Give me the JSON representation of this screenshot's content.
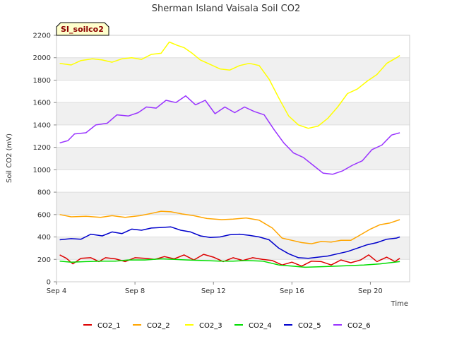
{
  "chart_data": {
    "type": "line",
    "title": "Sherman Island Vaisala Soil CO2",
    "badge": "SI_soilco2",
    "xlabel": "Time",
    "ylabel": "Soil CO2 (mV)",
    "xlim": [
      "2023-09-04",
      "2023-09-22"
    ],
    "ylim": [
      0,
      2200
    ],
    "yticks": [
      0,
      200,
      400,
      600,
      800,
      1000,
      1200,
      1400,
      1600,
      1800,
      2000,
      2200
    ],
    "xticks": [
      {
        "date": "2023-09-04",
        "label": "Sep 4"
      },
      {
        "date": "2023-09-08",
        "label": "Sep 8"
      },
      {
        "date": "2023-09-12",
        "label": "Sep 12"
      },
      {
        "date": "2023-09-16",
        "label": "Sep 16"
      },
      {
        "date": "2023-09-20",
        "label": "Sep 20"
      }
    ],
    "grid": true,
    "legend_position": "bottom",
    "series": [
      {
        "name": "CO2_1",
        "color": "#dd0000",
        "points": [
          [
            "2023-09-04 04:00",
            240
          ],
          [
            "2023-09-04 12:00",
            210
          ],
          [
            "2023-09-04 20:00",
            160
          ],
          [
            "2023-09-05 06:00",
            210
          ],
          [
            "2023-09-05 18:00",
            215
          ],
          [
            "2023-09-06 04:00",
            180
          ],
          [
            "2023-09-06 12:00",
            215
          ],
          [
            "2023-09-07 00:00",
            205
          ],
          [
            "2023-09-07 12:00",
            180
          ],
          [
            "2023-09-08 00:00",
            215
          ],
          [
            "2023-09-08 12:00",
            210
          ],
          [
            "2023-09-09 00:00",
            200
          ],
          [
            "2023-09-09 12:00",
            225
          ],
          [
            "2023-09-10 00:00",
            205
          ],
          [
            "2023-09-10 12:00",
            240
          ],
          [
            "2023-09-11 00:00",
            195
          ],
          [
            "2023-09-11 12:00",
            245
          ],
          [
            "2023-09-12 00:00",
            220
          ],
          [
            "2023-09-12 12:00",
            180
          ],
          [
            "2023-09-13 00:00",
            215
          ],
          [
            "2023-09-13 12:00",
            190
          ],
          [
            "2023-09-14 00:00",
            215
          ],
          [
            "2023-09-14 12:00",
            200
          ],
          [
            "2023-09-15 00:00",
            190
          ],
          [
            "2023-09-15 12:00",
            150
          ],
          [
            "2023-09-16 00:00",
            175
          ],
          [
            "2023-09-16 12:00",
            140
          ],
          [
            "2023-09-17 00:00",
            185
          ],
          [
            "2023-09-17 12:00",
            180
          ],
          [
            "2023-09-18 00:00",
            150
          ],
          [
            "2023-09-18 12:00",
            195
          ],
          [
            "2023-09-19 00:00",
            170
          ],
          [
            "2023-09-19 12:00",
            195
          ],
          [
            "2023-09-19 22:00",
            240
          ],
          [
            "2023-09-20 08:00",
            180
          ],
          [
            "2023-09-20 20:00",
            220
          ],
          [
            "2023-09-21 06:00",
            180
          ],
          [
            "2023-09-21 12:00",
            210
          ]
        ]
      },
      {
        "name": "CO2_2",
        "color": "#ffa500",
        "points": [
          [
            "2023-09-04 04:00",
            600
          ],
          [
            "2023-09-04 18:00",
            580
          ],
          [
            "2023-09-05 12:00",
            585
          ],
          [
            "2023-09-06 06:00",
            575
          ],
          [
            "2023-09-06 20:00",
            590
          ],
          [
            "2023-09-07 12:00",
            575
          ],
          [
            "2023-09-08 06:00",
            590
          ],
          [
            "2023-09-08 20:00",
            610
          ],
          [
            "2023-09-09 08:00",
            630
          ],
          [
            "2023-09-09 20:00",
            625
          ],
          [
            "2023-09-10 10:00",
            605
          ],
          [
            "2023-09-11 00:00",
            590
          ],
          [
            "2023-09-11 16:00",
            565
          ],
          [
            "2023-09-12 10:00",
            555
          ],
          [
            "2023-09-13 00:00",
            560
          ],
          [
            "2023-09-13 16:00",
            570
          ],
          [
            "2023-09-14 08:00",
            550
          ],
          [
            "2023-09-15 00:00",
            480
          ],
          [
            "2023-09-15 12:00",
            390
          ],
          [
            "2023-09-16 00:00",
            370
          ],
          [
            "2023-09-16 12:00",
            350
          ],
          [
            "2023-09-17 00:00",
            340
          ],
          [
            "2023-09-17 12:00",
            360
          ],
          [
            "2023-09-18 00:00",
            355
          ],
          [
            "2023-09-18 12:00",
            370
          ],
          [
            "2023-09-19 00:00",
            370
          ],
          [
            "2023-09-19 12:00",
            420
          ],
          [
            "2023-09-20 00:00",
            470
          ],
          [
            "2023-09-20 12:00",
            510
          ],
          [
            "2023-09-21 00:00",
            525
          ],
          [
            "2023-09-21 12:00",
            555
          ]
        ]
      },
      {
        "name": "CO2_3",
        "color": "#ffff00",
        "points": [
          [
            "2023-09-04 04:00",
            1950
          ],
          [
            "2023-09-04 18:00",
            1935
          ],
          [
            "2023-09-05 06:00",
            1975
          ],
          [
            "2023-09-05 20:00",
            1990
          ],
          [
            "2023-09-06 08:00",
            1980
          ],
          [
            "2023-09-06 20:00",
            1960
          ],
          [
            "2023-09-07 08:00",
            1990
          ],
          [
            "2023-09-07 20:00",
            2000
          ],
          [
            "2023-09-08 08:00",
            1985
          ],
          [
            "2023-09-08 20:00",
            2030
          ],
          [
            "2023-09-09 08:00",
            2040
          ],
          [
            "2023-09-09 18:00",
            2140
          ],
          [
            "2023-09-10 04:00",
            2110
          ],
          [
            "2023-09-10 12:00",
            2090
          ],
          [
            "2023-09-10 22:00",
            2040
          ],
          [
            "2023-09-11 08:00",
            1980
          ],
          [
            "2023-09-11 20:00",
            1940
          ],
          [
            "2023-09-12 08:00",
            1900
          ],
          [
            "2023-09-12 20:00",
            1890
          ],
          [
            "2023-09-13 08:00",
            1930
          ],
          [
            "2023-09-13 20:00",
            1950
          ],
          [
            "2023-09-14 08:00",
            1930
          ],
          [
            "2023-09-14 20:00",
            1810
          ],
          [
            "2023-09-15 08:00",
            1640
          ],
          [
            "2023-09-15 20:00",
            1480
          ],
          [
            "2023-09-16 08:00",
            1400
          ],
          [
            "2023-09-16 20:00",
            1370
          ],
          [
            "2023-09-17 08:00",
            1390
          ],
          [
            "2023-09-17 20:00",
            1460
          ],
          [
            "2023-09-18 08:00",
            1560
          ],
          [
            "2023-09-18 20:00",
            1680
          ],
          [
            "2023-09-19 08:00",
            1720
          ],
          [
            "2023-09-19 20:00",
            1790
          ],
          [
            "2023-09-20 08:00",
            1850
          ],
          [
            "2023-09-20 20:00",
            1950
          ],
          [
            "2023-09-21 08:00",
            2000
          ],
          [
            "2023-09-21 12:00",
            2020
          ]
        ]
      },
      {
        "name": "CO2_4",
        "color": "#00dd00",
        "points": [
          [
            "2023-09-04 04:00",
            185
          ],
          [
            "2023-09-04 18:00",
            175
          ],
          [
            "2023-09-05 12:00",
            180
          ],
          [
            "2023-09-06 08:00",
            185
          ],
          [
            "2023-09-07 00:00",
            185
          ],
          [
            "2023-09-07 16:00",
            195
          ],
          [
            "2023-09-08 12:00",
            195
          ],
          [
            "2023-09-09 08:00",
            205
          ],
          [
            "2023-09-10 00:00",
            200
          ],
          [
            "2023-09-10 16:00",
            195
          ],
          [
            "2023-09-11 12:00",
            190
          ],
          [
            "2023-09-12 08:00",
            185
          ],
          [
            "2023-09-13 00:00",
            185
          ],
          [
            "2023-09-13 16:00",
            190
          ],
          [
            "2023-09-14 12:00",
            185
          ],
          [
            "2023-09-15 08:00",
            150
          ],
          [
            "2023-09-16 00:00",
            140
          ],
          [
            "2023-09-16 16:00",
            130
          ],
          [
            "2023-09-17 12:00",
            135
          ],
          [
            "2023-09-18 08:00",
            140
          ],
          [
            "2023-09-19 00:00",
            145
          ],
          [
            "2023-09-19 16:00",
            150
          ],
          [
            "2023-09-20 12:00",
            160
          ],
          [
            "2023-09-21 12:00",
            180
          ]
        ]
      },
      {
        "name": "CO2_5",
        "color": "#0000cc",
        "points": [
          [
            "2023-09-04 04:00",
            375
          ],
          [
            "2023-09-04 18:00",
            385
          ],
          [
            "2023-09-05 06:00",
            380
          ],
          [
            "2023-09-05 18:00",
            425
          ],
          [
            "2023-09-06 08:00",
            410
          ],
          [
            "2023-09-06 20:00",
            445
          ],
          [
            "2023-09-07 08:00",
            430
          ],
          [
            "2023-09-07 20:00",
            470
          ],
          [
            "2023-09-08 08:00",
            460
          ],
          [
            "2023-09-08 20:00",
            480
          ],
          [
            "2023-09-09 08:00",
            485
          ],
          [
            "2023-09-09 20:00",
            490
          ],
          [
            "2023-09-10 08:00",
            460
          ],
          [
            "2023-09-10 20:00",
            445
          ],
          [
            "2023-09-11 08:00",
            410
          ],
          [
            "2023-09-11 20:00",
            395
          ],
          [
            "2023-09-12 08:00",
            400
          ],
          [
            "2023-09-12 20:00",
            420
          ],
          [
            "2023-09-13 08:00",
            425
          ],
          [
            "2023-09-13 20:00",
            415
          ],
          [
            "2023-09-14 08:00",
            400
          ],
          [
            "2023-09-14 20:00",
            375
          ],
          [
            "2023-09-15 08:00",
            300
          ],
          [
            "2023-09-15 20:00",
            250
          ],
          [
            "2023-09-16 08:00",
            215
          ],
          [
            "2023-09-16 20:00",
            210
          ],
          [
            "2023-09-17 08:00",
            220
          ],
          [
            "2023-09-17 20:00",
            230
          ],
          [
            "2023-09-18 08:00",
            250
          ],
          [
            "2023-09-18 20:00",
            270
          ],
          [
            "2023-09-19 08:00",
            300
          ],
          [
            "2023-09-19 20:00",
            330
          ],
          [
            "2023-09-20 08:00",
            350
          ],
          [
            "2023-09-20 20:00",
            380
          ],
          [
            "2023-09-21 08:00",
            390
          ],
          [
            "2023-09-21 12:00",
            400
          ]
        ]
      },
      {
        "name": "CO2_6",
        "color": "#9933ff",
        "points": [
          [
            "2023-09-04 04:00",
            1240
          ],
          [
            "2023-09-04 14:00",
            1260
          ],
          [
            "2023-09-04 22:00",
            1320
          ],
          [
            "2023-09-05 12:00",
            1330
          ],
          [
            "2023-09-06 00:00",
            1400
          ],
          [
            "2023-09-06 14:00",
            1415
          ],
          [
            "2023-09-07 02:00",
            1490
          ],
          [
            "2023-09-07 16:00",
            1480
          ],
          [
            "2023-09-08 04:00",
            1510
          ],
          [
            "2023-09-08 14:00",
            1560
          ],
          [
            "2023-09-09 02:00",
            1550
          ],
          [
            "2023-09-09 14:00",
            1620
          ],
          [
            "2023-09-10 02:00",
            1600
          ],
          [
            "2023-09-10 14:00",
            1660
          ],
          [
            "2023-09-11 02:00",
            1580
          ],
          [
            "2023-09-11 14:00",
            1620
          ],
          [
            "2023-09-12 02:00",
            1500
          ],
          [
            "2023-09-12 14:00",
            1560
          ],
          [
            "2023-09-13 02:00",
            1510
          ],
          [
            "2023-09-13 14:00",
            1560
          ],
          [
            "2023-09-14 02:00",
            1520
          ],
          [
            "2023-09-14 14:00",
            1490
          ],
          [
            "2023-09-15 02:00",
            1360
          ],
          [
            "2023-09-15 14:00",
            1240
          ],
          [
            "2023-09-16 02:00",
            1150
          ],
          [
            "2023-09-16 14:00",
            1110
          ],
          [
            "2023-09-17 02:00",
            1040
          ],
          [
            "2023-09-17 14:00",
            970
          ],
          [
            "2023-09-18 02:00",
            960
          ],
          [
            "2023-09-18 14:00",
            990
          ],
          [
            "2023-09-19 02:00",
            1040
          ],
          [
            "2023-09-19 14:00",
            1080
          ],
          [
            "2023-09-20 02:00",
            1180
          ],
          [
            "2023-09-20 14:00",
            1220
          ],
          [
            "2023-09-21 02:00",
            1310
          ],
          [
            "2023-09-21 12:00",
            1330
          ]
        ]
      }
    ]
  }
}
